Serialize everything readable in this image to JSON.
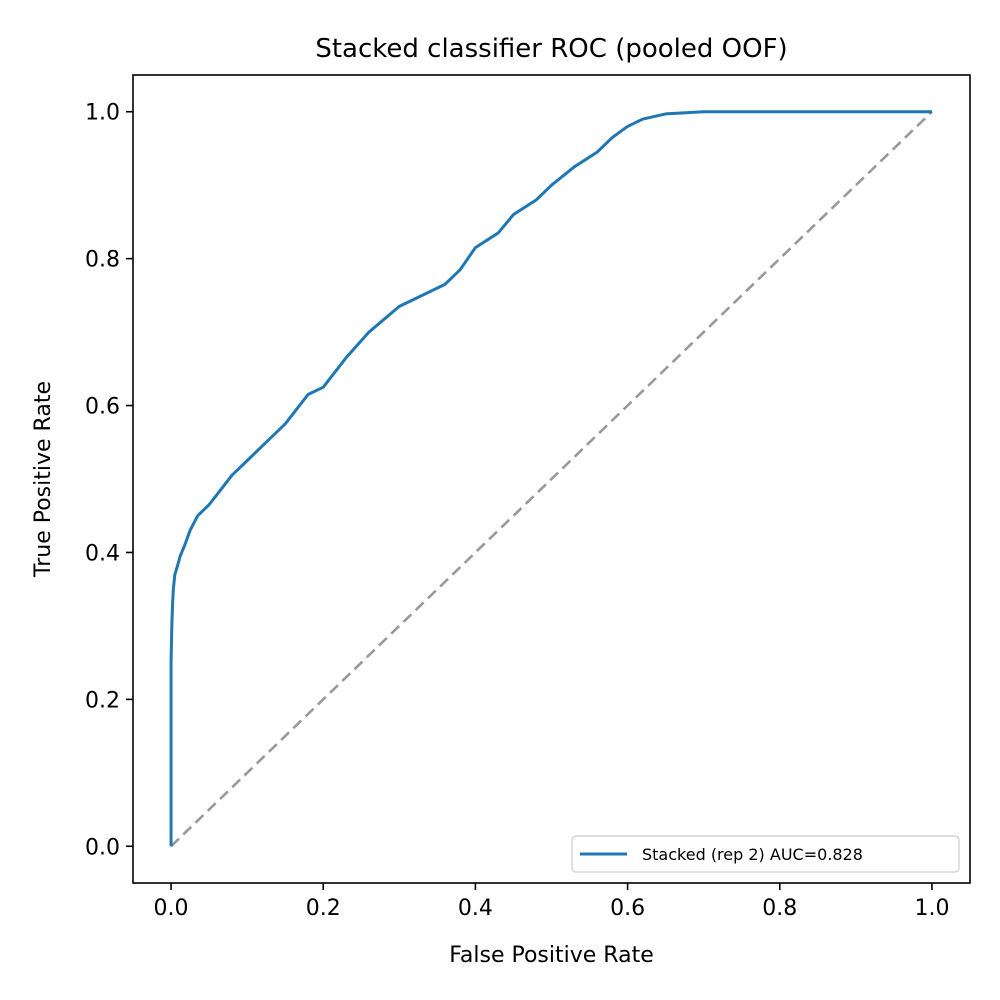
{
  "chart_data": {
    "type": "line",
    "title": "Stacked classifier ROC (pooled OOF)",
    "xlabel": "False Positive Rate",
    "ylabel": "True Positive Rate",
    "xlim": [
      -0.05,
      1.05
    ],
    "ylim": [
      -0.05,
      1.05
    ],
    "xticks": [
      0.0,
      0.2,
      0.4,
      0.6,
      0.8,
      1.0
    ],
    "yticks": [
      0.0,
      0.2,
      0.4,
      0.6,
      0.8,
      1.0
    ],
    "xtick_labels": [
      "0.0",
      "0.2",
      "0.4",
      "0.6",
      "0.8",
      "1.0"
    ],
    "ytick_labels": [
      "0.0",
      "0.2",
      "0.4",
      "0.6",
      "0.8",
      "1.0"
    ],
    "grid": false,
    "legend_position": "lower-right",
    "series": [
      {
        "name": "Stacked (rep 2) AUC=0.828",
        "color": "#1f77b4",
        "style": "solid",
        "x": [
          0.0,
          0.0,
          0.001,
          0.002,
          0.003,
          0.005,
          0.008,
          0.012,
          0.018,
          0.025,
          0.035,
          0.05,
          0.065,
          0.08,
          0.1,
          0.12,
          0.15,
          0.18,
          0.2,
          0.23,
          0.26,
          0.3,
          0.33,
          0.36,
          0.38,
          0.4,
          0.43,
          0.45,
          0.48,
          0.5,
          0.53,
          0.56,
          0.58,
          0.6,
          0.62,
          0.65,
          0.7,
          1.0
        ],
        "y": [
          0.0,
          0.25,
          0.3,
          0.33,
          0.35,
          0.37,
          0.38,
          0.395,
          0.41,
          0.43,
          0.45,
          0.465,
          0.485,
          0.505,
          0.525,
          0.545,
          0.575,
          0.615,
          0.625,
          0.665,
          0.7,
          0.735,
          0.75,
          0.765,
          0.785,
          0.815,
          0.835,
          0.86,
          0.88,
          0.9,
          0.925,
          0.945,
          0.965,
          0.98,
          0.99,
          0.997,
          1.0,
          1.0
        ]
      },
      {
        "name": "",
        "color": "#999999",
        "style": "dashed",
        "x": [
          0.0,
          1.0
        ],
        "y": [
          0.0,
          1.0
        ]
      }
    ]
  }
}
